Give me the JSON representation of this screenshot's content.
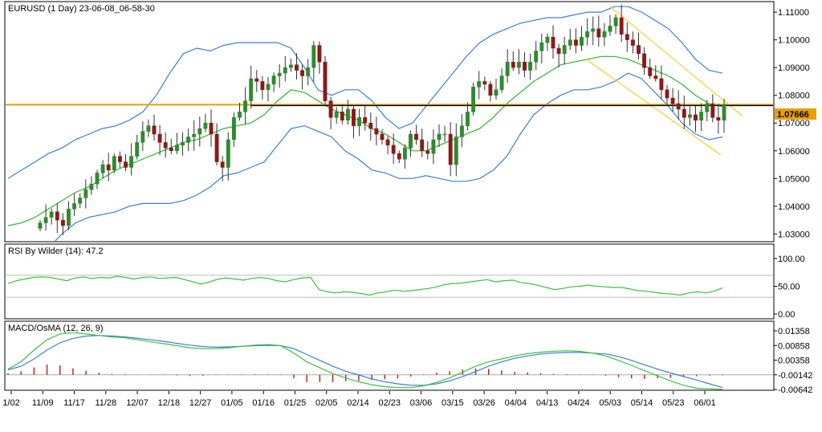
{
  "chart_data": [
    {
      "type": "candlestick",
      "title": "EURUSD (1 Day) 23-06-08_06-58-30",
      "ylim": [
        1.0275,
        1.1135
      ],
      "yticks": [
        "1.11000",
        "1.10000",
        "1.09000",
        "1.08000",
        "1.07000",
        "1.06000",
        "1.05000",
        "1.04000",
        "1.03000"
      ],
      "yticks_values": [
        1.11,
        1.1,
        1.09,
        1.08,
        1.07,
        1.06,
        1.05,
        1.04,
        1.03
      ],
      "current_price_label": "1.07666",
      "current_price": 1.07666,
      "horizontal_level": 1.0766,
      "grid": false,
      "closes": [
        1.034,
        1.036,
        1.038,
        1.035,
        1.033,
        1.039,
        1.041,
        1.043,
        1.046,
        1.048,
        1.052,
        1.055,
        1.053,
        1.058,
        1.056,
        1.054,
        1.058,
        1.063,
        1.067,
        1.069,
        1.066,
        1.063,
        1.061,
        1.06,
        1.062,
        1.063,
        1.065,
        1.066,
        1.068,
        1.07,
        1.066,
        1.056,
        1.054,
        1.064,
        1.072,
        1.074,
        1.078,
        1.086,
        1.085,
        1.082,
        1.084,
        1.087,
        1.088,
        1.09,
        1.091,
        1.089,
        1.087,
        1.09,
        1.098,
        1.092,
        1.078,
        1.072,
        1.074,
        1.071,
        1.075,
        1.069,
        1.072,
        1.07,
        1.068,
        1.066,
        1.064,
        1.062,
        1.059,
        1.057,
        1.061,
        1.066,
        1.064,
        1.06,
        1.059,
        1.064,
        1.066,
        1.066,
        1.055,
        1.065,
        1.069,
        1.074,
        1.083,
        1.085,
        1.084,
        1.08,
        1.082,
        1.087,
        1.092,
        1.09,
        1.092,
        1.089,
        1.092,
        1.096,
        1.099,
        1.101,
        1.097,
        1.095,
        1.098,
        1.1,
        1.098,
        1.101,
        1.103,
        1.104,
        1.101,
        1.103,
        1.105,
        1.108,
        1.102,
        1.1,
        1.098,
        1.095,
        1.09,
        1.087,
        1.086,
        1.082,
        1.079,
        1.077,
        1.075,
        1.072,
        1.073,
        1.071,
        1.074,
        1.077,
        1.072,
        1.071,
        1.0767
      ],
      "bollinger": {
        "middle": [
          1.033,
          1.034,
          1.036,
          1.039,
          1.042,
          1.045,
          1.047,
          1.05,
          1.053,
          1.055,
          1.057,
          1.059,
          1.061,
          1.063,
          1.064,
          1.066,
          1.068,
          1.069,
          1.07,
          1.073,
          1.078,
          1.082,
          1.081,
          1.078,
          1.075,
          1.073,
          1.071,
          1.068,
          1.066,
          1.063,
          1.06,
          1.06,
          1.062,
          1.064,
          1.066,
          1.068,
          1.072,
          1.077,
          1.081,
          1.085,
          1.088,
          1.091,
          1.092,
          1.093,
          1.094,
          1.094,
          1.093,
          1.091,
          1.089,
          1.087,
          1.084,
          1.08,
          1.077,
          1.076
        ],
        "upper": [
          1.05,
          1.053,
          1.056,
          1.059,
          1.061,
          1.064,
          1.066,
          1.068,
          1.069,
          1.071,
          1.074,
          1.08,
          1.088,
          1.095,
          1.097,
          1.096,
          1.098,
          1.099,
          1.099,
          1.099,
          1.099,
          1.097,
          1.09,
          1.082,
          1.08,
          1.082,
          1.082,
          1.078,
          1.072,
          1.068,
          1.07,
          1.076,
          1.082,
          1.088,
          1.094,
          1.099,
          1.102,
          1.104,
          1.106,
          1.107,
          1.108,
          1.108,
          1.109,
          1.11,
          1.11,
          1.112,
          1.112,
          1.11,
          1.107,
          1.104,
          1.099,
          1.093,
          1.089,
          1.088
        ],
        "lower": [
          1.018,
          1.016,
          1.02,
          1.025,
          1.03,
          1.034,
          1.036,
          1.037,
          1.038,
          1.04,
          1.041,
          1.041,
          1.041,
          1.042,
          1.044,
          1.047,
          1.051,
          1.052,
          1.054,
          1.056,
          1.062,
          1.068,
          1.069,
          1.067,
          1.065,
          1.06,
          1.057,
          1.053,
          1.052,
          1.05,
          1.05,
          1.051,
          1.05,
          1.049,
          1.049,
          1.05,
          1.053,
          1.058,
          1.066,
          1.073,
          1.077,
          1.08,
          1.082,
          1.082,
          1.083,
          1.085,
          1.088,
          1.086,
          1.081,
          1.076,
          1.07,
          1.066,
          1.064,
          1.065
        ]
      }
    },
    {
      "type": "line",
      "title": "RSI By Wilder (14): 47.2",
      "ylim": [
        0,
        100
      ],
      "yticks": [
        "100.00",
        "50.00",
        "0.00"
      ],
      "yticks_values": [
        100,
        50,
        0
      ],
      "levels": [
        70,
        30
      ],
      "values": [
        55,
        60,
        63,
        66,
        67,
        66,
        63,
        60,
        65,
        67,
        64,
        66,
        65,
        68,
        66,
        63,
        66,
        67,
        64,
        65,
        66,
        62,
        58,
        54,
        58,
        63,
        65,
        63,
        61,
        64,
        66,
        64,
        60,
        58,
        62,
        65,
        66,
        44,
        40,
        38,
        40,
        39,
        37,
        34,
        38,
        40,
        43,
        41,
        42,
        44,
        46,
        49,
        53,
        55,
        56,
        58,
        60,
        62,
        58,
        60,
        61,
        57,
        55,
        52,
        48,
        44,
        46,
        49,
        50,
        52,
        50,
        49,
        48,
        48,
        45,
        42,
        41,
        39,
        37,
        36,
        34,
        38,
        40,
        38,
        41,
        47.2
      ]
    },
    {
      "type": "line",
      "title": "MACD/OsMA (12, 26, 9)",
      "ylim": [
        -0.00642,
        0.01358
      ],
      "yticks": [
        "0.01358",
        "0.00858",
        "0.00358",
        "-0.00142",
        "-0.00642"
      ],
      "yticks_values": [
        0.01358,
        0.00858,
        0.00358,
        -0.00142,
        -0.00642
      ],
      "series": [
        {
          "values": [
            0.0005,
            0.003,
            0.007,
            0.0105,
            0.0125,
            0.013,
            0.0125,
            0.012,
            0.0115,
            0.0112,
            0.0105,
            0.0098,
            0.0092,
            0.0085,
            0.0078,
            0.0075,
            0.0075,
            0.0078,
            0.0083,
            0.0087,
            0.0089,
            0.0085,
            0.006,
            0.003,
            0.001,
            -0.001,
            -0.0025,
            -0.0038,
            -0.0048,
            -0.0055,
            -0.0058,
            -0.0058,
            -0.0052,
            -0.004,
            -0.0025,
            -0.0005,
            0.0015,
            0.003,
            0.004,
            0.005,
            0.0058,
            0.0063,
            0.0066,
            0.0068,
            0.0066,
            0.006,
            0.005,
            0.0035,
            0.0018,
            0,
            -0.0018,
            -0.0035,
            -0.005,
            -0.006,
            -0.0062,
            -0.0064
          ]
        },
        {
          "values": [
            0.0003,
            0.0015,
            0.004,
            0.007,
            0.0095,
            0.011,
            0.0118,
            0.012,
            0.0118,
            0.0115,
            0.011,
            0.0105,
            0.01,
            0.0093,
            0.0087,
            0.0082,
            0.008,
            0.0081,
            0.0083,
            0.0085,
            0.0086,
            0.0085,
            0.0075,
            0.0055,
            0.0035,
            0.0015,
            -0.0002,
            -0.0015,
            -0.0028,
            -0.0038,
            -0.0045,
            -0.005,
            -0.005,
            -0.0045,
            -0.0035,
            -0.002,
            -0.0003,
            0.0015,
            0.003,
            0.0042,
            0.005,
            0.0057,
            0.006,
            0.0062,
            0.0062,
            0.006,
            0.0057,
            0.0048,
            0.0035,
            0.002,
            0.0005,
            -0.0008,
            -0.002,
            -0.0032,
            -0.0045,
            -0.0058
          ]
        }
      ],
      "osma": [
        0.0005,
        0.0012,
        0.0025,
        0.0035,
        0.0032,
        0.0022,
        0.0014,
        0.0007,
        0.0003,
        0.0002,
        0.0001,
        0.0001,
        0.0001,
        -0.0002,
        -0.0004,
        -0.0003,
        -0.0001,
        0.0001,
        0.0001,
        0.0002,
        0.0002,
        0.0001,
        -0.0012,
        -0.0025,
        -0.0025,
        -0.0025,
        -0.0022,
        -0.0021,
        -0.0018,
        -0.0015,
        -0.0012,
        -0.0006,
        0.0002,
        0.0008,
        0.0012,
        0.0018,
        0.0022,
        0.002,
        0.0015,
        0.001,
        0.0008,
        0.0005,
        0.0003,
        0.0002,
        0.0001,
        0.0001,
        -0.0003,
        -0.0008,
        -0.0012,
        -0.0014,
        -0.0012,
        -0.001,
        -0.0008,
        -0.0005,
        -0.0003,
        -0.0002
      ]
    }
  ],
  "x_ticks": [
    "1/02",
    "11/09",
    "11/17",
    "11/28",
    "12/07",
    "12/18",
    "12/27",
    "01/05",
    "01/16",
    "01/25",
    "02/05",
    "02/14",
    "02/23",
    "03/06",
    "03/15",
    "03/26",
    "04/04",
    "04/13",
    "04/24",
    "05/03",
    "05/14",
    "05/23",
    "06/01"
  ],
  "colors": {
    "bull_candle": "#2f8a2f",
    "bear_candle": "#8b1a1a",
    "bb_outer": "#3b7fd9",
    "bb_mid": "#2db52d",
    "level_line": "#e8a000",
    "channel": "#f5d23a",
    "rsi": "#3cc23c",
    "macd_main": "#3cc23c",
    "macd_signal": "#3b7fd9",
    "osma": "#d01010"
  }
}
